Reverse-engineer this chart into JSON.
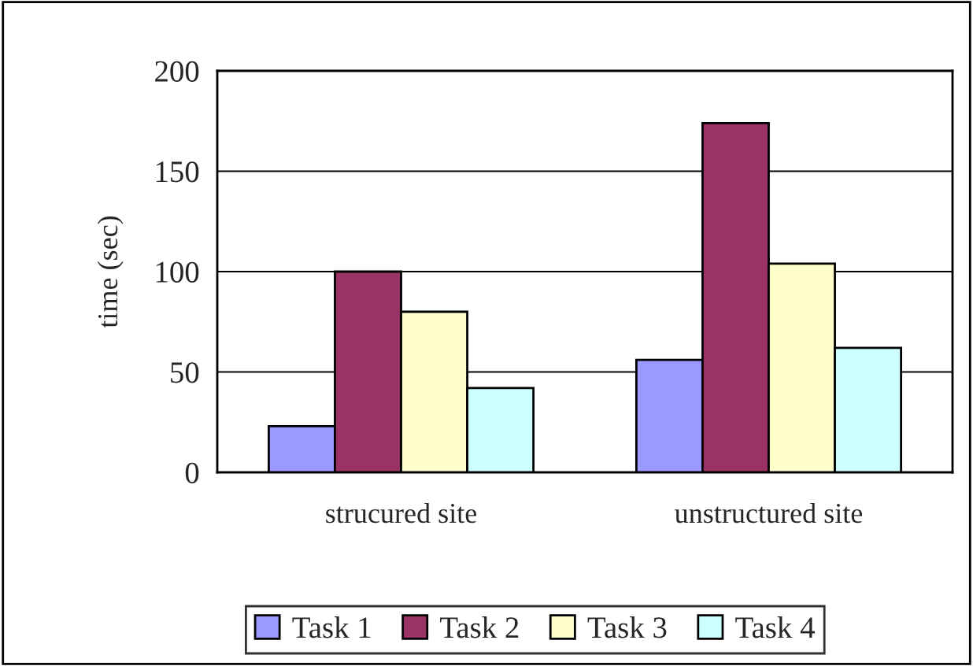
{
  "chart_data": {
    "type": "bar",
    "ylabel": "time (sec)",
    "categories": [
      "strucured site",
      "unstructured site"
    ],
    "series": [
      {
        "name": "Task 1",
        "color": "#9999ff",
        "values": [
          23,
          56
        ]
      },
      {
        "name": "Task 2",
        "color": "#993366",
        "values": [
          100,
          174
        ]
      },
      {
        "name": "Task 3",
        "color": "#ffffcc",
        "values": [
          80,
          104
        ]
      },
      {
        "name": "Task 4",
        "color": "#ccffff",
        "values": [
          42,
          62
        ]
      }
    ],
    "ylim": [
      0,
      200
    ],
    "yticks": [
      0,
      50,
      100,
      150,
      200
    ],
    "grid": "y",
    "legend": "bottom"
  }
}
